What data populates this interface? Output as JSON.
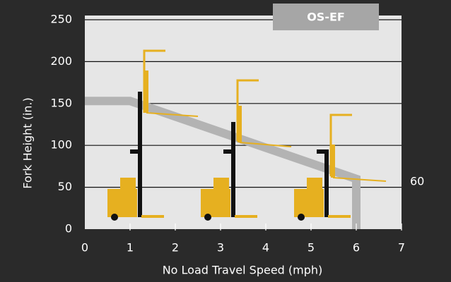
{
  "chart_data": {
    "type": "line",
    "badge": "OS-EF",
    "xlabel": "No Load Travel Speed (mph)",
    "ylabel": "Fork Height (in.)",
    "xlim": [
      0,
      7
    ],
    "ylim": [
      0,
      250
    ],
    "xticks": [
      0,
      1,
      2,
      3,
      4,
      5,
      6,
      7
    ],
    "yticks": [
      0,
      50,
      100,
      150,
      200,
      250
    ],
    "grid": true,
    "series": [
      {
        "color": "#b3b3b3",
        "x": [
          0,
          1,
          6,
          6
        ],
        "values": [
          153,
          153,
          60,
          0
        ]
      }
    ],
    "annotations": [
      {
        "text": "60"
      }
    ]
  }
}
